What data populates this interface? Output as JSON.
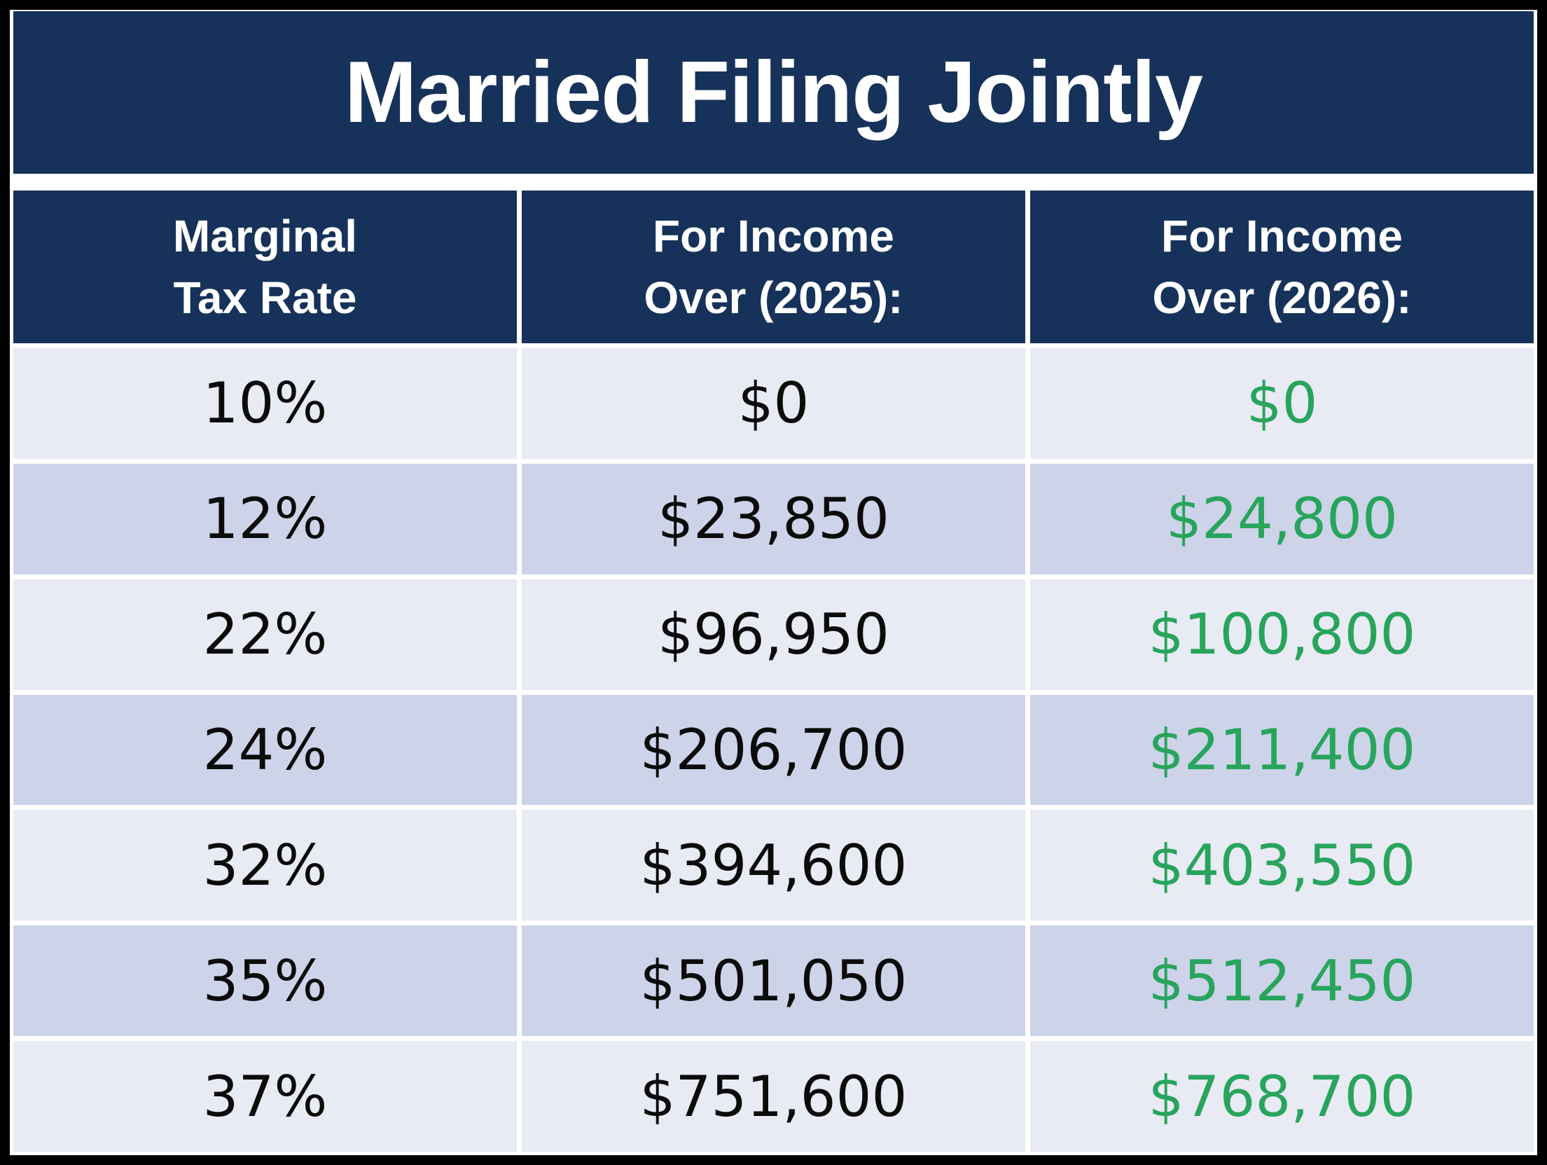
{
  "title": "Married Filing Jointly",
  "table": {
    "headers": [
      {
        "line1": "Marginal",
        "line2": "Tax Rate"
      },
      {
        "line1": "For Income",
        "line2": "Over (2025):"
      },
      {
        "line1": "For Income",
        "line2": "Over (2026):"
      }
    ],
    "rows": [
      {
        "rate": "10%",
        "income_2025": "$0",
        "income_2026": "$0"
      },
      {
        "rate": "12%",
        "income_2025": "$23,850",
        "income_2026": "$24,800"
      },
      {
        "rate": "22%",
        "income_2025": "$96,950",
        "income_2026": "$100,800"
      },
      {
        "rate": "24%",
        "income_2025": "$206,700",
        "income_2026": "$211,400"
      },
      {
        "rate": "32%",
        "income_2025": "$394,600",
        "income_2026": "$403,550"
      },
      {
        "rate": "35%",
        "income_2025": "$501,050",
        "income_2026": "$512,450"
      },
      {
        "rate": "37%",
        "income_2025": "$751,600",
        "income_2026": "$768,700"
      }
    ]
  },
  "colors": {
    "header_navy": "#17325A",
    "row_light": "#E8EAF4",
    "row_dark": "#CDD3E9",
    "highlight_green": "#28A45D",
    "text_dark": "#0B0B0B",
    "frame_black": "#000000",
    "gap_white": "#FFFFFF"
  },
  "chart_data": {
    "type": "table",
    "title": "Married Filing Jointly",
    "columns": [
      "Marginal Tax Rate",
      "For Income Over (2025):",
      "For Income Over (2026):"
    ],
    "rows": [
      [
        "10%",
        "$0",
        "$0"
      ],
      [
        "12%",
        "$23,850",
        "$24,800"
      ],
      [
        "22%",
        "$96,950",
        "$100,800"
      ],
      [
        "24%",
        "$206,700",
        "$211,400"
      ],
      [
        "32%",
        "$394,600",
        "$403,550"
      ],
      [
        "35%",
        "$501,050",
        "$512,450"
      ],
      [
        "37%",
        "$751,600",
        "$768,700"
      ]
    ],
    "notes": "2026 column rendered in green to highlight updated thresholds; rows alternate light/dark lavender shading"
  }
}
